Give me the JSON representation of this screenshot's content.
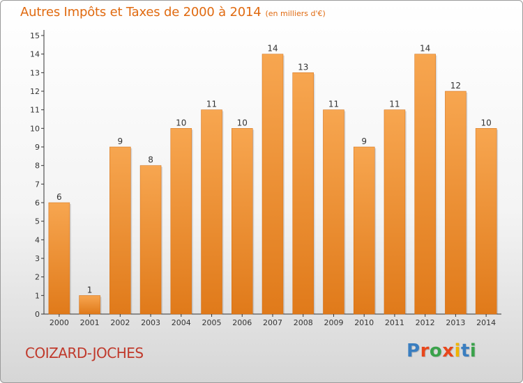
{
  "title": "Autres Impôts et Taxes de 2000 à 2014",
  "subtitle": "(en milliers d'€)",
  "commune": "COIZARD-JOCHES",
  "logo": {
    "text": "Proxiti",
    "colors": [
      "#3a7ec0",
      "#e8471c",
      "#3aa24b",
      "#e8471c",
      "#f0b400",
      "#3a7ec0",
      "#3aa24b"
    ]
  },
  "colors": {
    "bar_light": "#f7a650",
    "bar_dark": "#e07a1a",
    "axis": "#333333",
    "grid": "#cccccc",
    "label": "#333333"
  },
  "chart_data": {
    "type": "bar",
    "categories": [
      "2000",
      "2001",
      "2002",
      "2003",
      "2004",
      "2005",
      "2006",
      "2007",
      "2008",
      "2009",
      "2010",
      "2011",
      "2012",
      "2013",
      "2014"
    ],
    "values": [
      6,
      1,
      9,
      8,
      10,
      11,
      10,
      14,
      13,
      11,
      9,
      11,
      14,
      12,
      10
    ],
    "ylim": [
      0,
      15
    ],
    "yticks": [
      0,
      1,
      2,
      3,
      4,
      5,
      6,
      7,
      8,
      9,
      10,
      11,
      12,
      13,
      14,
      15
    ],
    "title": "Autres Impôts et Taxes de 2000 à 2014",
    "xlabel": "",
    "ylabel": "",
    "grid": false,
    "data_labels": true
  }
}
